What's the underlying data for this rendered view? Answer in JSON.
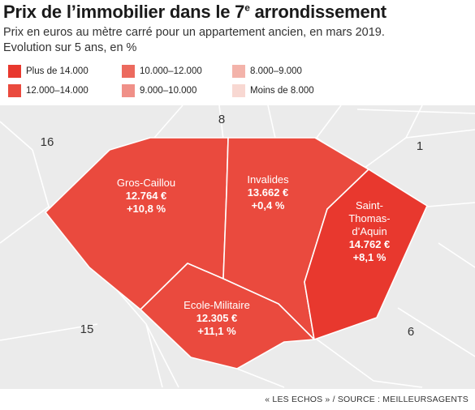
{
  "title": {
    "main": "Prix de l’immobilier dans le 7",
    "sup": "e",
    "rest": " arrondissement"
  },
  "subtitle_1": "Prix en euros au mètre carré pour un appartement ancien, en mars 2019.",
  "subtitle_2": "Evolution sur 5 ans, en %",
  "legend": [
    {
      "label": "Plus de 14.000",
      "color": "#e8382e"
    },
    {
      "label": "10.000–12.000",
      "color": "#ec6a5e"
    },
    {
      "label": "8.000–9.000",
      "color": "#f3b3aa"
    },
    {
      "label": "12.000–14.000",
      "color": "#ea4a3e"
    },
    {
      "label": "9.000–10.000",
      "color": "#f09088"
    },
    {
      "label": "Moins de 8.000",
      "color": "#f8d8d2"
    }
  ],
  "arrondissements": {
    "a16": "16",
    "a8": "8",
    "a1": "1",
    "a15": "15",
    "a6": "6"
  },
  "districts": [
    {
      "name": "Gros-Caillou",
      "price": "12.764 €",
      "change": "+10,8 %",
      "color": "#ea4a3e"
    },
    {
      "name": "Invalides",
      "price": "13.662 €",
      "change": "+0,4 %",
      "color": "#ea4a3e"
    },
    {
      "name": "Saint-Thomas-d’Aquin",
      "name_lines": [
        "Saint-",
        "Thomas-",
        "d’Aquin"
      ],
      "price": "14.762 €",
      "change": "+8,1 %",
      "color": "#e8382e"
    },
    {
      "name": "Ecole-Militaire",
      "price": "12.305 €",
      "change": "+11,1 %",
      "color": "#ea4a3e"
    }
  ],
  "source": "« LES ECHOS » / SOURCE : MEILLEURSAGENTS"
}
